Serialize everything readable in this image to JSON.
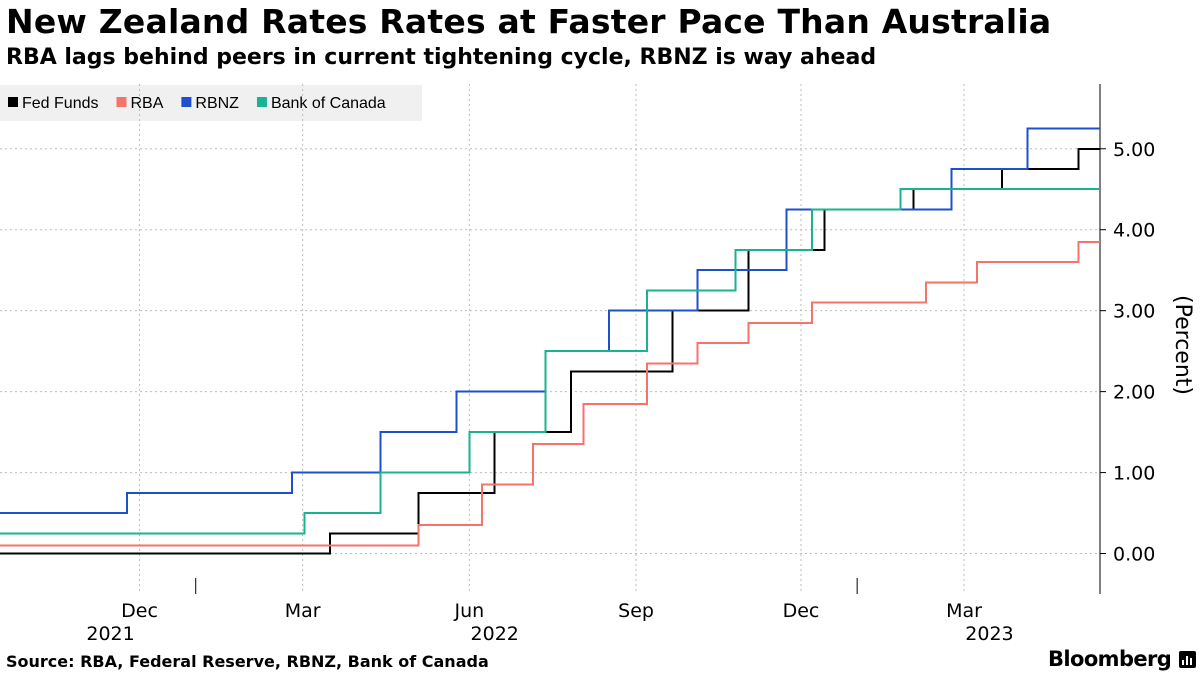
{
  "header": {
    "title": "New Zealand Rates Rates at Faster Pace Than Australia",
    "subtitle": "RBA lags behind peers in current tightening cycle, RBNZ is way ahead"
  },
  "footer": {
    "source": "Source: RBA, Federal Reserve, RBNZ, Bank of Canada",
    "brand": "Bloomberg"
  },
  "chart_data": {
    "type": "line",
    "step": true,
    "title": "New Zealand Rates Rates at Faster Pace Than Australia",
    "subtitle": "RBA lags behind peers in current tightening cycle, RBNZ is way ahead",
    "ylabel": "(Percent)",
    "xlabel": "",
    "y_axis_side": "right",
    "ylim": [
      -0.5,
      5.8
    ],
    "yticks": [
      0,
      1,
      2,
      3,
      4,
      5
    ],
    "ytick_labels": [
      "0.00",
      "1.00",
      "2.00",
      "3.00",
      "4.00",
      "5.00"
    ],
    "xlim": [
      "2021-09-15",
      "2023-05-15"
    ],
    "month_ticks": [
      {
        "date": "2021-12-01",
        "label": "Dec"
      },
      {
        "date": "2022-03-01",
        "label": "Mar"
      },
      {
        "date": "2022-06-01",
        "label": "Jun"
      },
      {
        "date": "2022-09-01",
        "label": "Sep"
      },
      {
        "date": "2022-12-01",
        "label": "Dec"
      },
      {
        "date": "2023-03-01",
        "label": "Mar"
      }
    ],
    "year_labels": [
      {
        "date": "2021-11-15",
        "label": "2021"
      },
      {
        "date": "2022-06-15",
        "label": "2022"
      },
      {
        "date": "2023-03-15",
        "label": "2023"
      }
    ],
    "year_dividers": [
      "2022-01-01",
      "2023-01-01"
    ],
    "grid": true,
    "legend_position": "top-left",
    "series": [
      {
        "name": "Fed Funds",
        "color": "#000000",
        "points": [
          [
            "2021-09-15",
            0
          ],
          [
            "2022-03-16",
            0.25
          ],
          [
            "2022-05-04",
            0.75
          ],
          [
            "2022-06-15",
            1.5
          ],
          [
            "2022-07-27",
            2.25
          ],
          [
            "2022-09-21",
            3.0
          ],
          [
            "2022-11-02",
            3.75
          ],
          [
            "2022-12-14",
            4.25
          ],
          [
            "2023-02-01",
            4.5
          ],
          [
            "2023-03-22",
            4.75
          ],
          [
            "2023-05-03",
            5.0
          ],
          [
            "2023-05-15",
            5.0
          ]
        ]
      },
      {
        "name": "RBA",
        "color": "#f4736b",
        "points": [
          [
            "2021-09-15",
            0.1
          ],
          [
            "2022-05-04",
            0.35
          ],
          [
            "2022-06-08",
            0.85
          ],
          [
            "2022-07-06",
            1.35
          ],
          [
            "2022-08-03",
            1.85
          ],
          [
            "2022-09-07",
            2.35
          ],
          [
            "2022-10-05",
            2.6
          ],
          [
            "2022-11-02",
            2.85
          ],
          [
            "2022-12-07",
            3.1
          ],
          [
            "2023-02-08",
            3.35
          ],
          [
            "2023-03-08",
            3.6
          ],
          [
            "2023-05-03",
            3.85
          ],
          [
            "2023-05-15",
            3.85
          ]
        ]
      },
      {
        "name": "RBNZ",
        "color": "#1e4fcf",
        "points": [
          [
            "2021-09-15",
            0.5
          ],
          [
            "2021-11-24",
            0.75
          ],
          [
            "2022-02-23",
            1.0
          ],
          [
            "2022-04-13",
            1.5
          ],
          [
            "2022-05-25",
            2.0
          ],
          [
            "2022-07-13",
            2.5
          ],
          [
            "2022-08-17",
            3.0
          ],
          [
            "2022-10-05",
            3.5
          ],
          [
            "2022-11-23",
            4.25
          ],
          [
            "2023-02-22",
            4.75
          ],
          [
            "2023-04-05",
            5.25
          ],
          [
            "2023-05-15",
            5.25
          ]
        ]
      },
      {
        "name": "Bank of Canada",
        "color": "#1bb38f",
        "points": [
          [
            "2021-09-15",
            0.25
          ],
          [
            "2022-03-02",
            0.5
          ],
          [
            "2022-04-13",
            1.0
          ],
          [
            "2022-06-01",
            1.5
          ],
          [
            "2022-07-13",
            2.5
          ],
          [
            "2022-09-07",
            3.25
          ],
          [
            "2022-10-26",
            3.75
          ],
          [
            "2022-12-07",
            4.25
          ],
          [
            "2023-01-25",
            4.5
          ],
          [
            "2023-05-15",
            4.5
          ]
        ]
      }
    ]
  }
}
